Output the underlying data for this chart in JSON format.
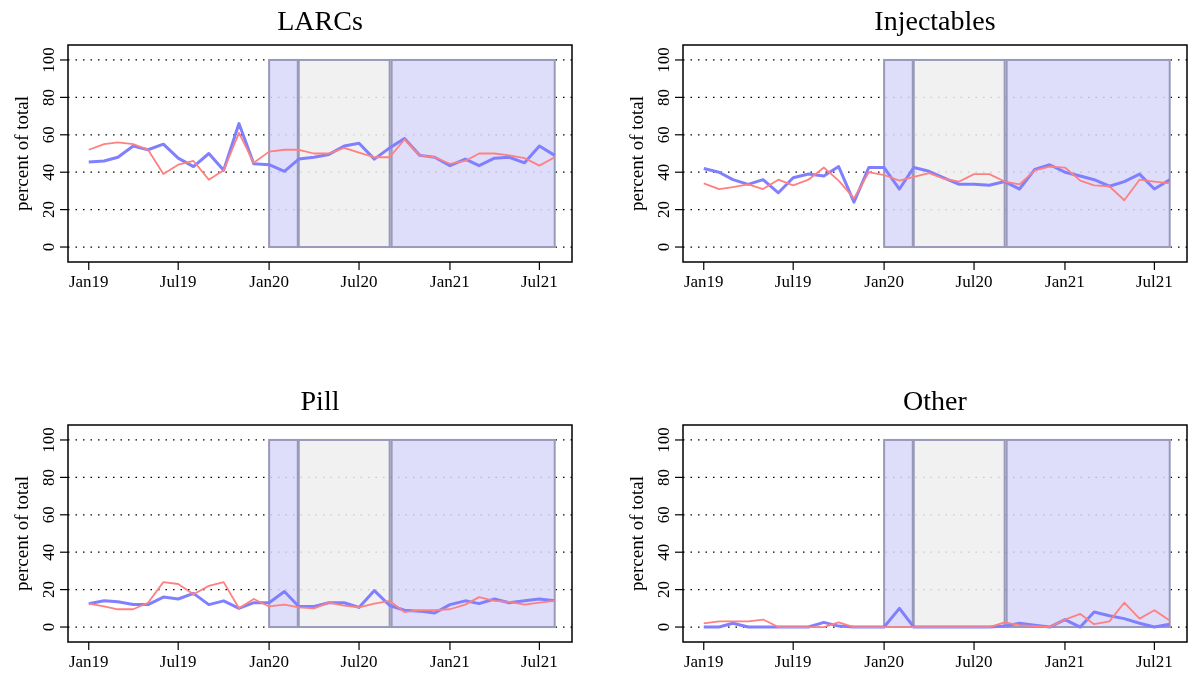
{
  "chart_data": [
    {
      "type": "line",
      "title": "LARCs",
      "ylabel": "percent of total",
      "x": [
        "2019-01",
        "2019-02",
        "2019-03",
        "2019-04",
        "2019-05",
        "2019-06",
        "2019-07",
        "2019-08",
        "2019-09",
        "2019-10",
        "2019-11",
        "2019-12",
        "2020-01",
        "2020-02",
        "2020-03",
        "2020-04",
        "2020-05",
        "2020-06",
        "2020-07",
        "2020-08",
        "2020-09",
        "2020-10",
        "2020-11",
        "2020-12",
        "2021-01",
        "2021-02",
        "2021-03",
        "2021-04",
        "2021-05",
        "2021-06",
        "2021-07",
        "2021-08"
      ],
      "series": [
        {
          "color": "#8080ff",
          "values": [
            45.5,
            46,
            48,
            54,
            52,
            55,
            47.5,
            43,
            50,
            41,
            66,
            44.5,
            44,
            40.5,
            47,
            48,
            49.5,
            54,
            55.5,
            47,
            53,
            58,
            49,
            48,
            43.5,
            47,
            43.5,
            47.5,
            48,
            45,
            54,
            49
          ]
        },
        {
          "color": "#ff8080",
          "values": [
            52,
            55,
            56,
            55,
            52,
            39,
            44,
            46,
            36,
            41,
            61,
            45,
            51,
            52,
            52,
            50,
            50,
            53,
            50.5,
            48,
            48,
            57.5,
            49,
            48,
            44.5,
            46,
            50,
            50,
            49,
            47.5,
            43.5,
            48
          ]
        }
      ],
      "xlim": [
        "2018-11-20",
        "2021-09-05"
      ],
      "xticks": [
        {
          "value": "2019-01",
          "label": "Jan19"
        },
        {
          "value": "2019-07",
          "label": "Jul19"
        },
        {
          "value": "2020-01",
          "label": "Jan20"
        },
        {
          "value": "2020-07",
          "label": "Jul20"
        },
        {
          "value": "2021-01",
          "label": "Jan21"
        },
        {
          "value": "2021-07",
          "label": "Jul21"
        }
      ],
      "ylim": [
        -8,
        108
      ],
      "yticks": [
        0,
        20,
        40,
        60,
        80,
        100
      ],
      "grid": "y",
      "bands": [
        {
          "axis": "x",
          "from": "2020-01-01",
          "to": "2020-02-28",
          "color": "#d8d8fa"
        },
        {
          "axis": "x",
          "from": "2020-03-01",
          "to": "2020-09-01",
          "color": "#efefef"
        },
        {
          "axis": "x",
          "from": "2020-09-05",
          "to": "2021-08-01",
          "color": "#d8d8fa"
        }
      ]
    },
    {
      "type": "line",
      "title": "Injectables",
      "ylabel": "percent of total",
      "x": [
        "2019-01",
        "2019-02",
        "2019-03",
        "2019-04",
        "2019-05",
        "2019-06",
        "2019-07",
        "2019-08",
        "2019-09",
        "2019-10",
        "2019-11",
        "2019-12",
        "2020-01",
        "2020-02",
        "2020-03",
        "2020-04",
        "2020-05",
        "2020-06",
        "2020-07",
        "2020-08",
        "2020-09",
        "2020-10",
        "2020-11",
        "2020-12",
        "2021-01",
        "2021-02",
        "2021-03",
        "2021-04",
        "2021-05",
        "2021-06",
        "2021-07",
        "2021-08"
      ],
      "series": [
        {
          "color": "#8080ff",
          "values": [
            42,
            40,
            36,
            33.5,
            36,
            29,
            37,
            39,
            38,
            43,
            24,
            42.5,
            42.5,
            31,
            42.5,
            40.5,
            37,
            33.5,
            33.5,
            33,
            35,
            31,
            41.5,
            44,
            40,
            38,
            36,
            32.5,
            35,
            39,
            31,
            36
          ]
        },
        {
          "color": "#ff8080",
          "values": [
            34,
            31,
            32,
            33.5,
            31,
            36,
            33,
            36,
            42.5,
            35.5,
            26,
            40,
            38.5,
            35.5,
            37.5,
            39.5,
            36.5,
            35,
            39,
            39,
            35,
            33.5,
            41,
            43,
            42.5,
            35.5,
            33,
            32.5,
            25,
            36,
            35,
            34
          ]
        }
      ],
      "xlim": [
        "2018-11-20",
        "2021-09-05"
      ],
      "xticks": [
        {
          "value": "2019-01",
          "label": "Jan19"
        },
        {
          "value": "2019-07",
          "label": "Jul19"
        },
        {
          "value": "2020-01",
          "label": "Jan20"
        },
        {
          "value": "2020-07",
          "label": "Jul20"
        },
        {
          "value": "2021-01",
          "label": "Jan21"
        },
        {
          "value": "2021-07",
          "label": "Jul21"
        }
      ],
      "ylim": [
        -8,
        108
      ],
      "yticks": [
        0,
        20,
        40,
        60,
        80,
        100
      ],
      "grid": "y",
      "bands": [
        {
          "axis": "x",
          "from": "2020-01-01",
          "to": "2020-02-28",
          "color": "#d8d8fa"
        },
        {
          "axis": "x",
          "from": "2020-03-01",
          "to": "2020-09-01",
          "color": "#efefef"
        },
        {
          "axis": "x",
          "from": "2020-09-05",
          "to": "2021-08-01",
          "color": "#d8d8fa"
        }
      ]
    },
    {
      "type": "line",
      "title": "Pill",
      "ylabel": "percent of total",
      "x": [
        "2019-01",
        "2019-02",
        "2019-03",
        "2019-04",
        "2019-05",
        "2019-06",
        "2019-07",
        "2019-08",
        "2019-09",
        "2019-10",
        "2019-11",
        "2019-12",
        "2020-01",
        "2020-02",
        "2020-03",
        "2020-04",
        "2020-05",
        "2020-06",
        "2020-07",
        "2020-08",
        "2020-09",
        "2020-10",
        "2020-11",
        "2020-12",
        "2021-01",
        "2021-02",
        "2021-03",
        "2021-04",
        "2021-05",
        "2021-06",
        "2021-07",
        "2021-08"
      ],
      "series": [
        {
          "color": "#8080ff",
          "values": [
            12.5,
            14,
            13.5,
            12,
            12,
            16,
            15,
            18,
            12,
            14,
            10,
            13,
            13,
            19,
            11,
            11,
            13,
            13,
            10.5,
            19.5,
            11.5,
            9,
            8.5,
            7.5,
            12,
            14,
            12.5,
            15,
            13,
            14,
            15,
            14
          ]
        },
        {
          "color": "#ff8080",
          "values": [
            12.5,
            11,
            9.5,
            9.5,
            13,
            24,
            23,
            17.5,
            22,
            24,
            10,
            15,
            11,
            12,
            10.5,
            10,
            13,
            11.5,
            10.5,
            12.5,
            14,
            8,
            9,
            9,
            9.5,
            12,
            16,
            14,
            13.5,
            12,
            13,
            14
          ]
        }
      ],
      "xlim": [
        "2018-11-20",
        "2021-09-05"
      ],
      "xticks": [
        {
          "value": "2019-01",
          "label": "Jan19"
        },
        {
          "value": "2019-07",
          "label": "Jul19"
        },
        {
          "value": "2020-01",
          "label": "Jan20"
        },
        {
          "value": "2020-07",
          "label": "Jul20"
        },
        {
          "value": "2021-01",
          "label": "Jan21"
        },
        {
          "value": "2021-07",
          "label": "Jul21"
        }
      ],
      "ylim": [
        -8,
        108
      ],
      "yticks": [
        0,
        20,
        40,
        60,
        80,
        100
      ],
      "grid": "y",
      "bands": [
        {
          "axis": "x",
          "from": "2020-01-01",
          "to": "2020-02-28",
          "color": "#d8d8fa"
        },
        {
          "axis": "x",
          "from": "2020-03-01",
          "to": "2020-09-01",
          "color": "#efefef"
        },
        {
          "axis": "x",
          "from": "2020-09-05",
          "to": "2021-08-01",
          "color": "#d8d8fa"
        }
      ]
    },
    {
      "type": "line",
      "title": "Other",
      "ylabel": "percent of total",
      "x": [
        "2019-01",
        "2019-02",
        "2019-03",
        "2019-04",
        "2019-05",
        "2019-06",
        "2019-07",
        "2019-08",
        "2019-09",
        "2019-10",
        "2019-11",
        "2019-12",
        "2020-01",
        "2020-02",
        "2020-03",
        "2020-04",
        "2020-05",
        "2020-06",
        "2020-07",
        "2020-08",
        "2020-09",
        "2020-10",
        "2020-11",
        "2020-12",
        "2021-01",
        "2021-02",
        "2021-03",
        "2021-04",
        "2021-05",
        "2021-06",
        "2021-07",
        "2021-08"
      ],
      "series": [
        {
          "color": "#8080ff",
          "values": [
            0,
            0,
            2,
            0,
            0,
            0,
            0,
            0,
            2.5,
            0.5,
            0,
            0,
            0,
            10,
            0,
            0,
            0,
            0,
            0,
            0,
            0.5,
            2,
            1,
            0,
            4,
            0,
            8,
            6,
            4.5,
            2,
            0,
            1.5
          ]
        },
        {
          "color": "#ff8080",
          "values": [
            2,
            3,
            3,
            3,
            4,
            0,
            0,
            0,
            0,
            2.5,
            0,
            0,
            0,
            0,
            0,
            0,
            0,
            0,
            0,
            0,
            2.5,
            1,
            0.5,
            0,
            4,
            7,
            1.5,
            3,
            13,
            4.5,
            9,
            3.5
          ]
        }
      ],
      "xlim": [
        "2018-11-20",
        "2021-09-05"
      ],
      "xticks": [
        {
          "value": "2019-01",
          "label": "Jan19"
        },
        {
          "value": "2019-07",
          "label": "Jul19"
        },
        {
          "value": "2020-01",
          "label": "Jan20"
        },
        {
          "value": "2020-07",
          "label": "Jul20"
        },
        {
          "value": "2021-01",
          "label": "Jan21"
        },
        {
          "value": "2021-07",
          "label": "Jul21"
        }
      ],
      "ylim": [
        -8,
        108
      ],
      "yticks": [
        0,
        20,
        40,
        60,
        80,
        100
      ],
      "grid": "y",
      "bands": [
        {
          "axis": "x",
          "from": "2020-01-01",
          "to": "2020-02-28",
          "color": "#d8d8fa"
        },
        {
          "axis": "x",
          "from": "2020-03-01",
          "to": "2020-09-01",
          "color": "#efefef"
        },
        {
          "axis": "x",
          "from": "2020-09-05",
          "to": "2021-08-01",
          "color": "#d8d8fa"
        }
      ]
    }
  ]
}
